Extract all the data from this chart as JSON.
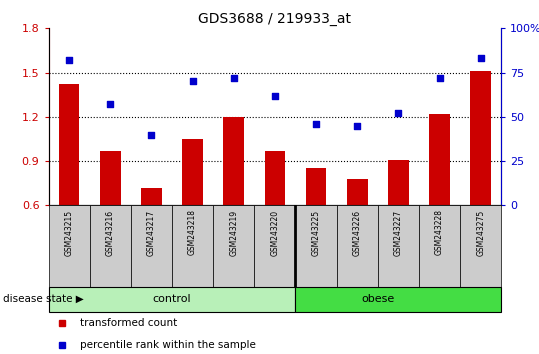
{
  "title": "GDS3688 / 219933_at",
  "categories": [
    "GSM243215",
    "GSM243216",
    "GSM243217",
    "GSM243218",
    "GSM243219",
    "GSM243220",
    "GSM243225",
    "GSM243226",
    "GSM243227",
    "GSM243228",
    "GSM243275"
  ],
  "red_values": [
    1.42,
    0.97,
    0.72,
    1.05,
    1.2,
    0.97,
    0.85,
    0.78,
    0.91,
    1.22,
    1.51
  ],
  "blue_values": [
    82,
    57,
    40,
    70,
    72,
    62,
    46,
    45,
    52,
    72,
    83
  ],
  "ylim_left": [
    0.6,
    1.8
  ],
  "ylim_right": [
    0,
    100
  ],
  "yticks_left": [
    0.6,
    0.9,
    1.2,
    1.5,
    1.8
  ],
  "yticks_right": [
    0,
    25,
    50,
    75,
    100
  ],
  "ytick_labels_right": [
    "0",
    "25",
    "50",
    "75",
    "100%"
  ],
  "hlines": [
    0.9,
    1.2,
    1.5
  ],
  "control_count": 6,
  "obese_count": 5,
  "control_label": "control",
  "obese_label": "obese",
  "disease_state_label": "disease state",
  "legend_red": "transformed count",
  "legend_blue": "percentile rank within the sample",
  "bar_color": "#cc0000",
  "dot_color": "#0000cc",
  "control_color": "#b8f0b8",
  "obese_color": "#44dd44",
  "tick_label_area_color": "#cccccc",
  "bar_width": 0.5
}
